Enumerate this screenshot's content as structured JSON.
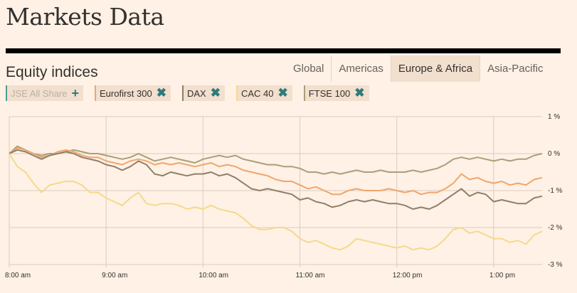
{
  "header": {
    "title": "Markets Data",
    "section": "Equity indices"
  },
  "tabs": [
    {
      "label": "Global",
      "active": false
    },
    {
      "label": "Americas",
      "active": false
    },
    {
      "label": "Europe & Africa",
      "active": true
    },
    {
      "label": "Asia-Pacific",
      "active": false
    }
  ],
  "chips": [
    {
      "label": "JSE All Share",
      "color": "#4f9b95",
      "action": "add-icon",
      "enabled": false
    },
    {
      "label": "Eurofirst 300",
      "color": "#f2a56a",
      "action": "remove-icon",
      "enabled": true
    },
    {
      "label": "DAX",
      "color": "#8f7f6a",
      "action": "remove-icon",
      "enabled": true
    },
    {
      "label": "CAC 40",
      "color": "#f4d98c",
      "action": "remove-icon",
      "enabled": true
    },
    {
      "label": "FTSE 100",
      "color": "#a7a07a",
      "action": "remove-icon",
      "enabled": true
    }
  ],
  "icons": {
    "add": "+",
    "remove": "✖"
  },
  "chart_data": {
    "type": "line",
    "xlim": [
      0,
      330
    ],
    "ylim": [
      -3,
      1
    ],
    "x_ticks": [
      {
        "x": 0,
        "label": "8:00 am"
      },
      {
        "x": 60,
        "label": "9:00 am"
      },
      {
        "x": 120,
        "label": "10:00 am"
      },
      {
        "x": 180,
        "label": "11:00 am"
      },
      {
        "x": 240,
        "label": "12:00 pm"
      },
      {
        "x": 300,
        "label": "1:00 pm"
      }
    ],
    "y_ticks": [
      {
        "y": 1,
        "label": "1 %"
      },
      {
        "y": 0,
        "label": "0 %"
      },
      {
        "y": -1,
        "label": "-1 %"
      },
      {
        "y": -2,
        "label": "-2 %"
      },
      {
        "y": -3,
        "label": "-3 %"
      }
    ],
    "grid": true,
    "series": [
      {
        "name": "FTSE 100",
        "color": "#a7a07a",
        "points": [
          [
            0,
            0
          ],
          [
            5,
            0.2
          ],
          [
            10,
            0.1
          ],
          [
            15,
            0
          ],
          [
            20,
            -0.05
          ],
          [
            25,
            0
          ],
          [
            30,
            0
          ],
          [
            35,
            0.05
          ],
          [
            40,
            0.1
          ],
          [
            45,
            0.05
          ],
          [
            50,
            0
          ],
          [
            55,
            0
          ],
          [
            60,
            -0.05
          ],
          [
            65,
            -0.1
          ],
          [
            70,
            -0.15
          ],
          [
            75,
            -0.1
          ],
          [
            80,
            0
          ],
          [
            85,
            -0.1
          ],
          [
            90,
            -0.2
          ],
          [
            95,
            -0.15
          ],
          [
            100,
            -0.1
          ],
          [
            105,
            -0.15
          ],
          [
            110,
            -0.2
          ],
          [
            115,
            -0.25
          ],
          [
            120,
            -0.15
          ],
          [
            125,
            -0.1
          ],
          [
            130,
            -0.05
          ],
          [
            135,
            -0.1
          ],
          [
            140,
            -0.05
          ],
          [
            145,
            -0.15
          ],
          [
            150,
            -0.2
          ],
          [
            155,
            -0.25
          ],
          [
            160,
            -0.3
          ],
          [
            165,
            -0.3
          ],
          [
            170,
            -0.35
          ],
          [
            175,
            -0.35
          ],
          [
            180,
            -0.4
          ],
          [
            185,
            -0.5
          ],
          [
            190,
            -0.5
          ],
          [
            195,
            -0.55
          ],
          [
            200,
            -0.5
          ],
          [
            205,
            -0.55
          ],
          [
            210,
            -0.5
          ],
          [
            215,
            -0.45
          ],
          [
            220,
            -0.5
          ],
          [
            225,
            -0.5
          ],
          [
            230,
            -0.45
          ],
          [
            235,
            -0.5
          ],
          [
            240,
            -0.5
          ],
          [
            245,
            -0.5
          ],
          [
            250,
            -0.45
          ],
          [
            255,
            -0.5
          ],
          [
            260,
            -0.45
          ],
          [
            265,
            -0.4
          ],
          [
            270,
            -0.3
          ],
          [
            275,
            -0.15
          ],
          [
            280,
            -0.1
          ],
          [
            285,
            -0.15
          ],
          [
            290,
            -0.1
          ],
          [
            295,
            -0.15
          ],
          [
            300,
            -0.2
          ],
          [
            305,
            -0.15
          ],
          [
            310,
            -0.2
          ],
          [
            315,
            -0.15
          ],
          [
            320,
            -0.15
          ],
          [
            325,
            -0.05
          ],
          [
            330,
            0
          ]
        ]
      },
      {
        "name": "Eurofirst 300",
        "color": "#f2a56a",
        "points": [
          [
            0,
            0
          ],
          [
            5,
            0.15
          ],
          [
            10,
            0.1
          ],
          [
            15,
            0
          ],
          [
            20,
            -0.1
          ],
          [
            25,
            -0.05
          ],
          [
            30,
            0.05
          ],
          [
            35,
            0.1
          ],
          [
            40,
            0.05
          ],
          [
            45,
            -0.05
          ],
          [
            50,
            -0.1
          ],
          [
            55,
            -0.1
          ],
          [
            60,
            -0.2
          ],
          [
            65,
            -0.25
          ],
          [
            70,
            -0.3
          ],
          [
            75,
            -0.2
          ],
          [
            80,
            -0.15
          ],
          [
            85,
            -0.2
          ],
          [
            90,
            -0.3
          ],
          [
            95,
            -0.25
          ],
          [
            100,
            -0.3
          ],
          [
            105,
            -0.25
          ],
          [
            110,
            -0.3
          ],
          [
            115,
            -0.35
          ],
          [
            120,
            -0.3
          ],
          [
            125,
            -0.25
          ],
          [
            130,
            -0.35
          ],
          [
            135,
            -0.3
          ],
          [
            140,
            -0.35
          ],
          [
            145,
            -0.45
          ],
          [
            150,
            -0.5
          ],
          [
            155,
            -0.55
          ],
          [
            160,
            -0.6
          ],
          [
            165,
            -0.7
          ],
          [
            170,
            -0.75
          ],
          [
            175,
            -0.75
          ],
          [
            180,
            -0.85
          ],
          [
            185,
            -0.95
          ],
          [
            190,
            -0.9
          ],
          [
            195,
            -1
          ],
          [
            200,
            -1.1
          ],
          [
            205,
            -1.1
          ],
          [
            210,
            -1
          ],
          [
            215,
            -0.95
          ],
          [
            220,
            -1
          ],
          [
            225,
            -1
          ],
          [
            230,
            -1
          ],
          [
            235,
            -0.95
          ],
          [
            240,
            -1
          ],
          [
            245,
            -1.05
          ],
          [
            250,
            -1
          ],
          [
            255,
            -1.1
          ],
          [
            260,
            -1.05
          ],
          [
            265,
            -1.05
          ],
          [
            270,
            -0.95
          ],
          [
            275,
            -0.8
          ],
          [
            280,
            -0.55
          ],
          [
            285,
            -0.7
          ],
          [
            290,
            -0.65
          ],
          [
            295,
            -0.75
          ],
          [
            300,
            -0.8
          ],
          [
            305,
            -0.75
          ],
          [
            310,
            -0.85
          ],
          [
            315,
            -0.8
          ],
          [
            320,
            -0.85
          ],
          [
            325,
            -0.7
          ],
          [
            330,
            -0.65
          ]
        ]
      },
      {
        "name": "DAX",
        "color": "#8f7f6a",
        "points": [
          [
            0,
            0
          ],
          [
            5,
            0.1
          ],
          [
            10,
            0.05
          ],
          [
            15,
            -0.05
          ],
          [
            20,
            -0.15
          ],
          [
            25,
            -0.05
          ],
          [
            30,
            0
          ],
          [
            35,
            0.05
          ],
          [
            40,
            0
          ],
          [
            45,
            -0.1
          ],
          [
            50,
            -0.15
          ],
          [
            55,
            -0.2
          ],
          [
            60,
            -0.3
          ],
          [
            65,
            -0.35
          ],
          [
            70,
            -0.45
          ],
          [
            75,
            -0.35
          ],
          [
            80,
            -0.2
          ],
          [
            85,
            -0.3
          ],
          [
            90,
            -0.55
          ],
          [
            95,
            -0.6
          ],
          [
            100,
            -0.5
          ],
          [
            105,
            -0.55
          ],
          [
            110,
            -0.6
          ],
          [
            115,
            -0.55
          ],
          [
            120,
            -0.55
          ],
          [
            125,
            -0.5
          ],
          [
            130,
            -0.6
          ],
          [
            135,
            -0.55
          ],
          [
            140,
            -0.65
          ],
          [
            145,
            -0.8
          ],
          [
            150,
            -0.95
          ],
          [
            155,
            -1
          ],
          [
            160,
            -0.95
          ],
          [
            165,
            -1
          ],
          [
            170,
            -1.05
          ],
          [
            175,
            -1.1
          ],
          [
            180,
            -1.25
          ],
          [
            185,
            -1.2
          ],
          [
            190,
            -1.3
          ],
          [
            195,
            -1.35
          ],
          [
            200,
            -1.45
          ],
          [
            205,
            -1.4
          ],
          [
            210,
            -1.3
          ],
          [
            215,
            -1.25
          ],
          [
            220,
            -1.3
          ],
          [
            225,
            -1.25
          ],
          [
            230,
            -1.3
          ],
          [
            235,
            -1.35
          ],
          [
            240,
            -1.35
          ],
          [
            245,
            -1.4
          ],
          [
            250,
            -1.5
          ],
          [
            255,
            -1.45
          ],
          [
            260,
            -1.5
          ],
          [
            265,
            -1.4
          ],
          [
            270,
            -1.25
          ],
          [
            275,
            -1.1
          ],
          [
            280,
            -0.95
          ],
          [
            285,
            -1.15
          ],
          [
            290,
            -1.05
          ],
          [
            295,
            -1.1
          ],
          [
            300,
            -1.3
          ],
          [
            305,
            -1.25
          ],
          [
            310,
            -1.3
          ],
          [
            315,
            -1.35
          ],
          [
            320,
            -1.35
          ],
          [
            325,
            -1.2
          ],
          [
            330,
            -1.15
          ]
        ]
      },
      {
        "name": "CAC 40",
        "color": "#f4d98c",
        "points": [
          [
            0,
            0
          ],
          [
            5,
            -0.35
          ],
          [
            10,
            -0.5
          ],
          [
            15,
            -0.8
          ],
          [
            20,
            -1.05
          ],
          [
            25,
            -0.85
          ],
          [
            30,
            -0.8
          ],
          [
            35,
            -0.75
          ],
          [
            40,
            -0.75
          ],
          [
            45,
            -0.85
          ],
          [
            50,
            -1.05
          ],
          [
            55,
            -1.05
          ],
          [
            60,
            -1.2
          ],
          [
            65,
            -1.3
          ],
          [
            70,
            -1.4
          ],
          [
            75,
            -1.2
          ],
          [
            80,
            -1.05
          ],
          [
            85,
            -1.35
          ],
          [
            90,
            -1.4
          ],
          [
            95,
            -1.35
          ],
          [
            100,
            -1.35
          ],
          [
            105,
            -1.4
          ],
          [
            110,
            -1.5
          ],
          [
            115,
            -1.45
          ],
          [
            120,
            -1.5
          ],
          [
            125,
            -1.4
          ],
          [
            130,
            -1.5
          ],
          [
            135,
            -1.55
          ],
          [
            140,
            -1.6
          ],
          [
            145,
            -1.75
          ],
          [
            150,
            -1.95
          ],
          [
            155,
            -2.05
          ],
          [
            160,
            -2.05
          ],
          [
            165,
            -2
          ],
          [
            170,
            -2
          ],
          [
            175,
            -2.1
          ],
          [
            180,
            -2.3
          ],
          [
            185,
            -2.4
          ],
          [
            190,
            -2.35
          ],
          [
            195,
            -2.45
          ],
          [
            200,
            -2.55
          ],
          [
            205,
            -2.6
          ],
          [
            210,
            -2.5
          ],
          [
            215,
            -2.3
          ],
          [
            220,
            -2.35
          ],
          [
            225,
            -2.4
          ],
          [
            230,
            -2.45
          ],
          [
            235,
            -2.5
          ],
          [
            240,
            -2.55
          ],
          [
            245,
            -2.5
          ],
          [
            250,
            -2.6
          ],
          [
            255,
            -2.55
          ],
          [
            260,
            -2.6
          ],
          [
            265,
            -2.5
          ],
          [
            270,
            -2.3
          ],
          [
            275,
            -2.05
          ],
          [
            280,
            -2
          ],
          [
            285,
            -2.15
          ],
          [
            290,
            -2.1
          ],
          [
            295,
            -2.2
          ],
          [
            300,
            -2.3
          ],
          [
            305,
            -2.3
          ],
          [
            310,
            -2.4
          ],
          [
            315,
            -2.35
          ],
          [
            320,
            -2.45
          ],
          [
            325,
            -2.2
          ],
          [
            330,
            -2.1
          ]
        ]
      }
    ]
  }
}
